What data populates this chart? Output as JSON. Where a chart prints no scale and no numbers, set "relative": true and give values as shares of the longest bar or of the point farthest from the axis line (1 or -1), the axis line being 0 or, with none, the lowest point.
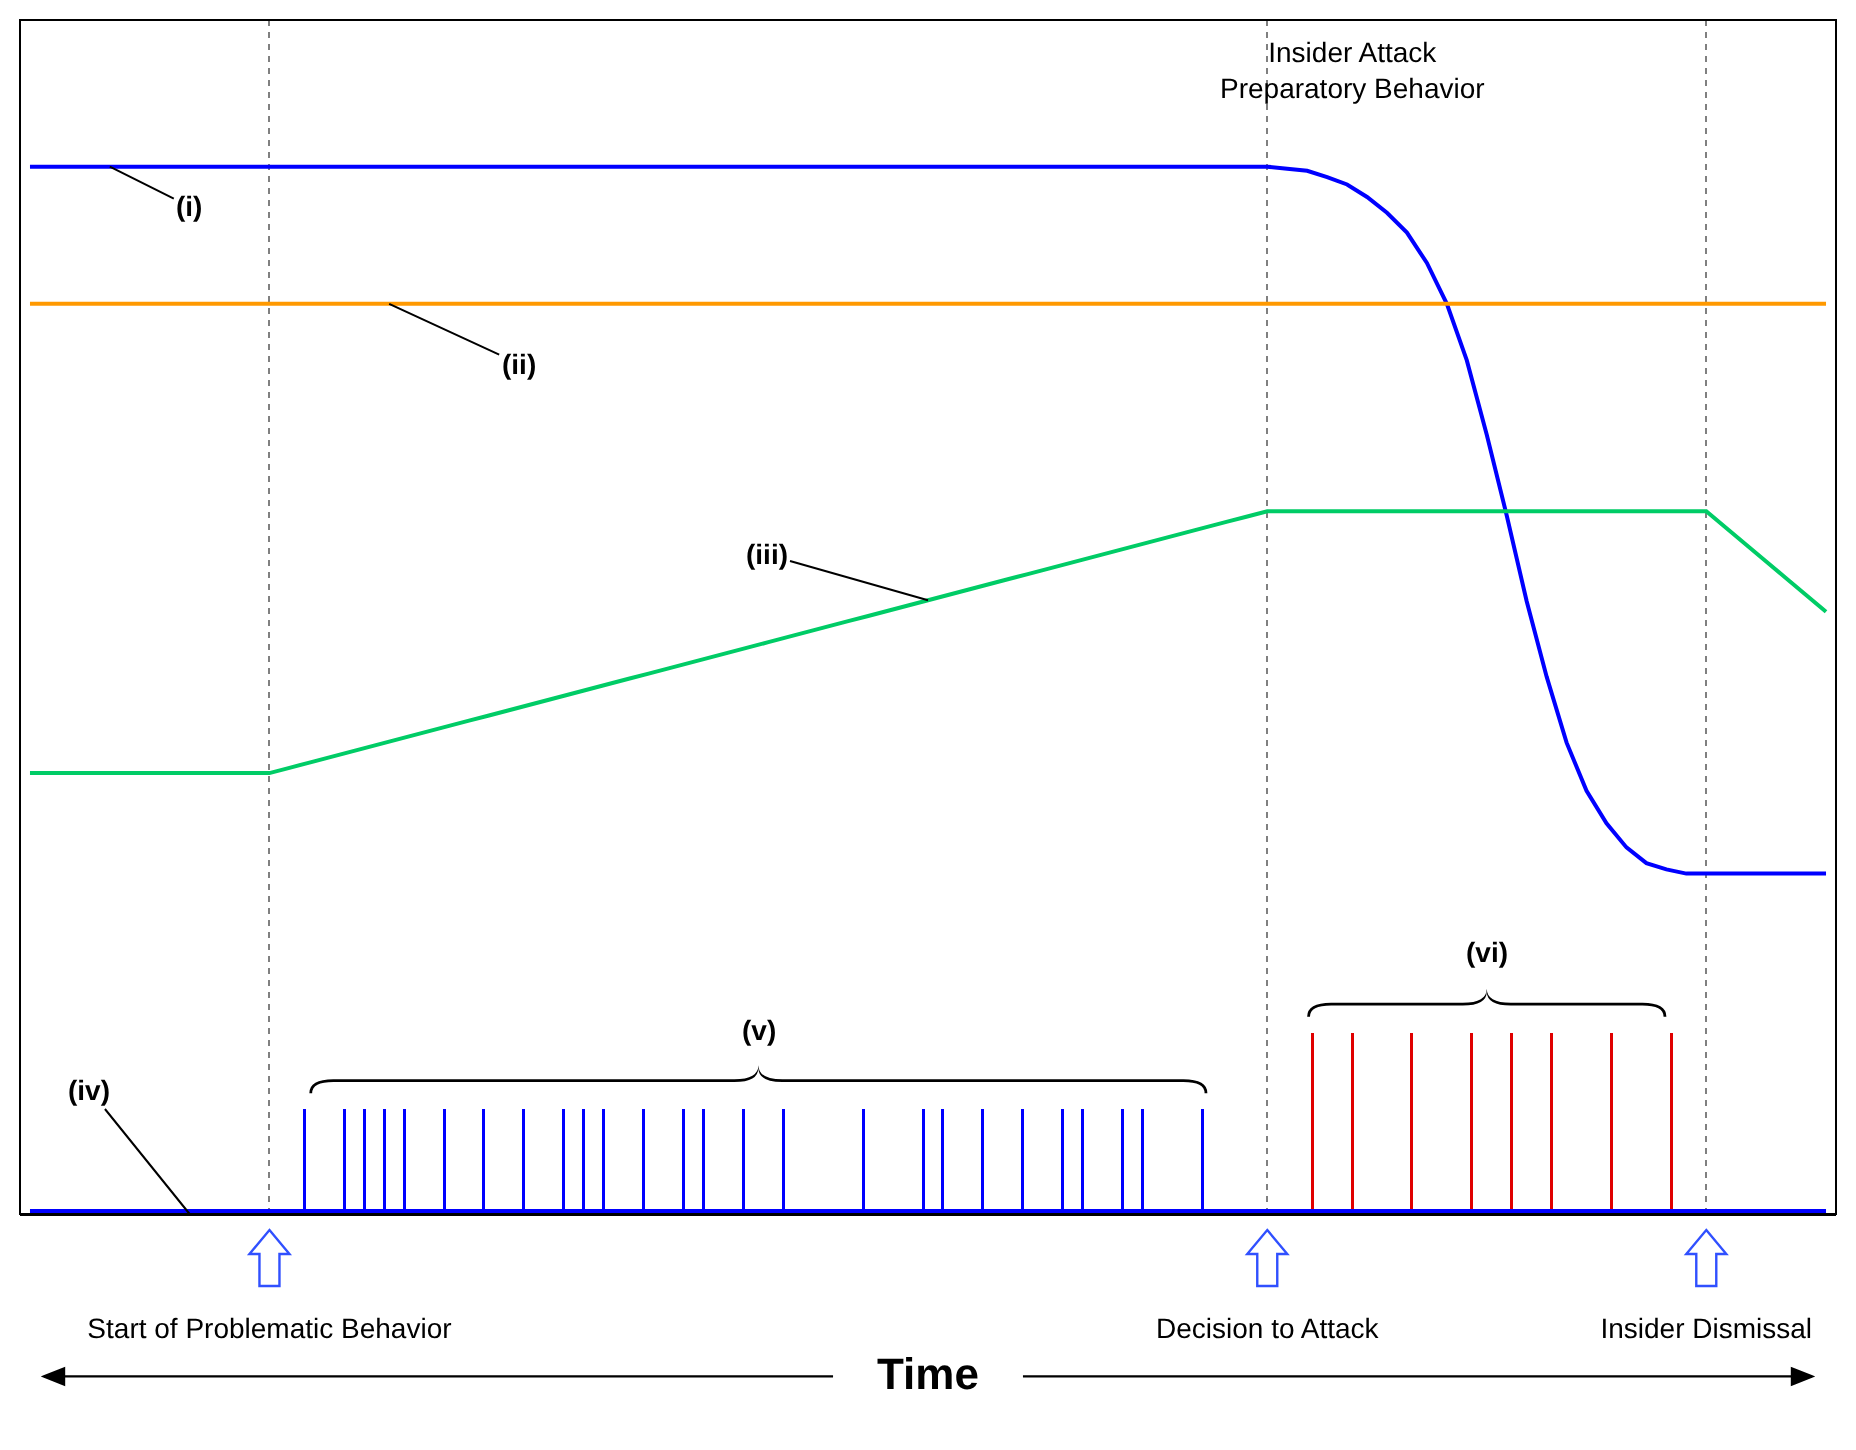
{
  "chart_data": {
    "type": "line",
    "relative": true,
    "xlabel": "Time",
    "tick_labels": "x",
    "grid": "x",
    "legend": false,
    "marker": "none",
    "categories": [
      null,
      null,
      null,
      null,
      null,
      null,
      null,
      null,
      null,
      null,
      null,
      null,
      "Start of Problematic Behavior",
      null,
      null,
      null,
      null,
      null,
      null,
      null,
      null,
      null,
      null,
      null,
      null,
      null,
      null,
      null,
      null,
      null,
      null,
      null,
      null,
      null,
      null,
      null,
      null,
      null,
      null,
      null,
      null,
      null,
      null,
      null,
      null,
      null,
      null,
      null,
      null,
      null,
      null,
      null,
      null,
      null,
      null,
      null,
      null,
      null,
      null,
      null,
      null,
      null,
      "Decision to Attack",
      null,
      null,
      null,
      null,
      null,
      null,
      null,
      null,
      null,
      null,
      null,
      null,
      null,
      null,
      null,
      null,
      null,
      null,
      null,
      null,
      null,
      "Insider Dismissal",
      null,
      null,
      null,
      null,
      null,
      null
    ],
    "series": [
      {
        "name": "(i)",
        "color": "#0000ff",
        "values": [
          1,
          1,
          1,
          1,
          1,
          1,
          1,
          1,
          1,
          1,
          1,
          1,
          1,
          1,
          1,
          1,
          1,
          1,
          1,
          1,
          1,
          1,
          1,
          1,
          1,
          1,
          1,
          1,
          1,
          1,
          1,
          1,
          1,
          1,
          1,
          1,
          1,
          1,
          1,
          1,
          1,
          1,
          1,
          1,
          1,
          1,
          1,
          1,
          1,
          1,
          1,
          1,
          1,
          1,
          1,
          1,
          1,
          1,
          1,
          1,
          1,
          1,
          1,
          0.998,
          0.996,
          0.99,
          0.983,
          0.971,
          0.956,
          0.937,
          0.908,
          0.869,
          0.815,
          0.744,
          0.667,
          0.585,
          0.513,
          0.45,
          0.404,
          0.373,
          0.35,
          0.335,
          0.329,
          0.325,
          0.325,
          0.325,
          0.325,
          0.325,
          0.325,
          0.325,
          0.325
        ]
      },
      {
        "name": "(ii)",
        "color": "#ff9900",
        "values": [
          0.869,
          0.869,
          0.869,
          0.869,
          0.869,
          0.869,
          0.869,
          0.869,
          0.869,
          0.869,
          0.869,
          0.869,
          0.869,
          0.869,
          0.869,
          0.869,
          0.869,
          0.869,
          0.869,
          0.869,
          0.869,
          0.869,
          0.869,
          0.869,
          0.869,
          0.869,
          0.869,
          0.869,
          0.869,
          0.869,
          0.869,
          0.869,
          0.869,
          0.869,
          0.869,
          0.869,
          0.869,
          0.869,
          0.869,
          0.869,
          0.869,
          0.869,
          0.869,
          0.869,
          0.869,
          0.869,
          0.869,
          0.869,
          0.869,
          0.869,
          0.869,
          0.869,
          0.869,
          0.869,
          0.869,
          0.869,
          0.869,
          0.869,
          0.869,
          0.869,
          0.869,
          0.869,
          0.869,
          0.869,
          0.869,
          0.869,
          0.869,
          0.869,
          0.869,
          0.869,
          0.869,
          0.869,
          0.869,
          0.869,
          0.869,
          0.869,
          0.869,
          0.869,
          0.869,
          0.869,
          0.869,
          0.869,
          0.869,
          0.869,
          0.869,
          0.869,
          0.869,
          0.869,
          0.869,
          0.869,
          0.869
        ]
      },
      {
        "name": "(iii)",
        "color": "#00cc66",
        "values": [
          0.421,
          0.421,
          0.421,
          0.421,
          0.421,
          0.421,
          0.421,
          0.421,
          0.421,
          0.421,
          0.421,
          0.421,
          0.421,
          0.426,
          0.431,
          0.436,
          0.441,
          0.446,
          0.451,
          0.456,
          0.461,
          0.466,
          0.471,
          0.476,
          0.481,
          0.486,
          0.491,
          0.496,
          0.501,
          0.506,
          0.511,
          0.516,
          0.521,
          0.526,
          0.531,
          0.536,
          0.541,
          0.546,
          0.551,
          0.556,
          0.561,
          0.566,
          0.571,
          0.576,
          0.581,
          0.586,
          0.591,
          0.596,
          0.601,
          0.606,
          0.611,
          0.616,
          0.621,
          0.626,
          0.631,
          0.636,
          0.641,
          0.646,
          0.651,
          0.656,
          0.661,
          0.666,
          0.671,
          0.671,
          0.671,
          0.671,
          0.671,
          0.671,
          0.671,
          0.671,
          0.671,
          0.671,
          0.671,
          0.671,
          0.671,
          0.671,
          0.671,
          0.671,
          0.671,
          0.671,
          0.671,
          0.671,
          0.671,
          0.671,
          0.671,
          0.655,
          0.639,
          0.623,
          0.607,
          0.591,
          0.575
        ]
      },
      {
        "name": "(iv)",
        "color": "#0000ff",
        "values": [
          0,
          0,
          0,
          0,
          0,
          0,
          0,
          0,
          0,
          0,
          0,
          0,
          0,
          0,
          0,
          0,
          0,
          0,
          0,
          0,
          0,
          0,
          0,
          0,
          0,
          0,
          0,
          0,
          0,
          0,
          0,
          0,
          0,
          0,
          0,
          0,
          0,
          0,
          0,
          0,
          0,
          0,
          0,
          0,
          0,
          0,
          0,
          0,
          0,
          0,
          0,
          0,
          0,
          0,
          0,
          0,
          0,
          0,
          0,
          0,
          0,
          0,
          0,
          0,
          0,
          0,
          0,
          0,
          0,
          0,
          0,
          0,
          0,
          0,
          0,
          0,
          0,
          0,
          0,
          0,
          0,
          0,
          0,
          0,
          0,
          0,
          0,
          0,
          0,
          0,
          0
        ]
      },
      {
        "type": "bar",
        "name": "(v)",
        "color": "#0000ff",
        "values": [
          null,
          null,
          null,
          null,
          null,
          null,
          null,
          null,
          null,
          null,
          null,
          null,
          null,
          null,
          0.1,
          null,
          0.1,
          0.1,
          0.1,
          0.1,
          null,
          0.1,
          null,
          0.1,
          null,
          0.1,
          null,
          0.1,
          0.1,
          0.1,
          null,
          0.1,
          null,
          0.1,
          0.1,
          null,
          0.1,
          null,
          0.1,
          null,
          null,
          null,
          0.1,
          null,
          null,
          0.1,
          0.1,
          null,
          0.1,
          null,
          0.1,
          null,
          0.1,
          0.1,
          null,
          0.1,
          0.1,
          null,
          null,
          0.1,
          null,
          null,
          null,
          null,
          null,
          null,
          null,
          null,
          null,
          null,
          null,
          null,
          null,
          null,
          null,
          null,
          null,
          null,
          null,
          null,
          null,
          null,
          null,
          null,
          null,
          null,
          null,
          null,
          null,
          null,
          null
        ]
      },
      {
        "type": "bar",
        "name": "(vi)",
        "color": "#e00000",
        "values": [
          null,
          null,
          null,
          null,
          null,
          null,
          null,
          null,
          null,
          null,
          null,
          null,
          null,
          null,
          null,
          null,
          null,
          null,
          null,
          null,
          null,
          null,
          null,
          null,
          null,
          null,
          null,
          null,
          null,
          null,
          null,
          null,
          null,
          null,
          null,
          null,
          null,
          null,
          null,
          null,
          null,
          null,
          null,
          null,
          null,
          null,
          null,
          null,
          null,
          null,
          null,
          null,
          null,
          null,
          null,
          null,
          null,
          null,
          null,
          null,
          null,
          null,
          null,
          null,
          0.173,
          null,
          0.173,
          null,
          null,
          0.173,
          null,
          null,
          0.173,
          null,
          0.173,
          null,
          0.173,
          null,
          null,
          0.173,
          null,
          null,
          0.173,
          null,
          null,
          null,
          null,
          null,
          null,
          null,
          null
        ]
      }
    ],
    "annotations": [
      "Insider Attack\nPreparatory Behavior"
    ]
  }
}
